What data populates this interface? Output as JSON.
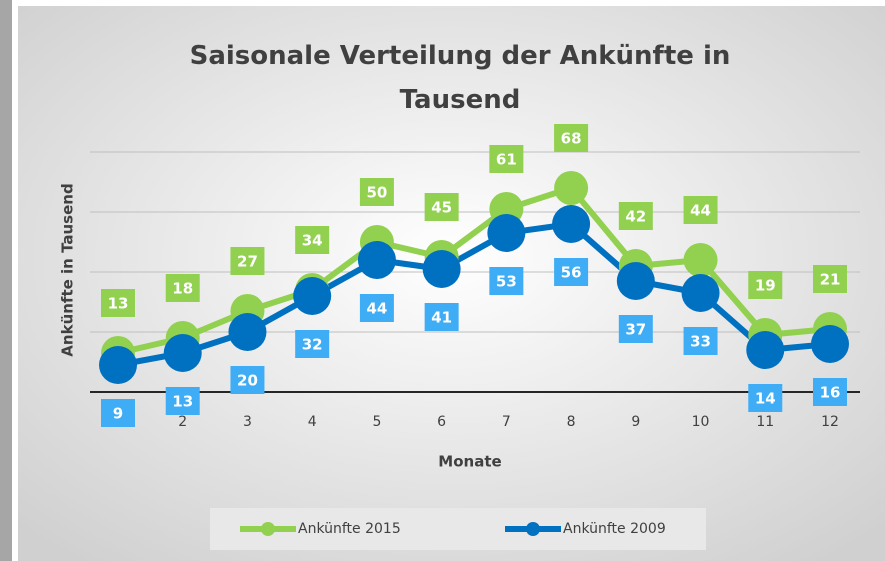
{
  "chart_data": {
    "type": "line",
    "title": "Saisonale Verteilung der Ankünfte in Tausend",
    "x_label": "Monate",
    "y_label": "Ankünfte in Tausend",
    "categories": [
      "1",
      "2",
      "3",
      "4",
      "5",
      "6",
      "7",
      "8",
      "9",
      "10",
      "11",
      "12"
    ],
    "series": [
      {
        "name": "Ankünfte 2015",
        "color": "#92d050",
        "label_color": "#92d050",
        "values": [
          13,
          18,
          27,
          34,
          50,
          45,
          61,
          68,
          42,
          44,
          19,
          21
        ]
      },
      {
        "name": "Ankünfte 2009",
        "color": "#0070c0",
        "label_color": "#3fadf5",
        "values": [
          9,
          13,
          20,
          32,
          44,
          41,
          53,
          56,
          37,
          33,
          14,
          16
        ]
      }
    ],
    "ylim": [
      0,
      80
    ],
    "yticks": [
      0,
      20,
      40,
      60,
      80
    ],
    "grid": true,
    "legend": "bottom"
  }
}
